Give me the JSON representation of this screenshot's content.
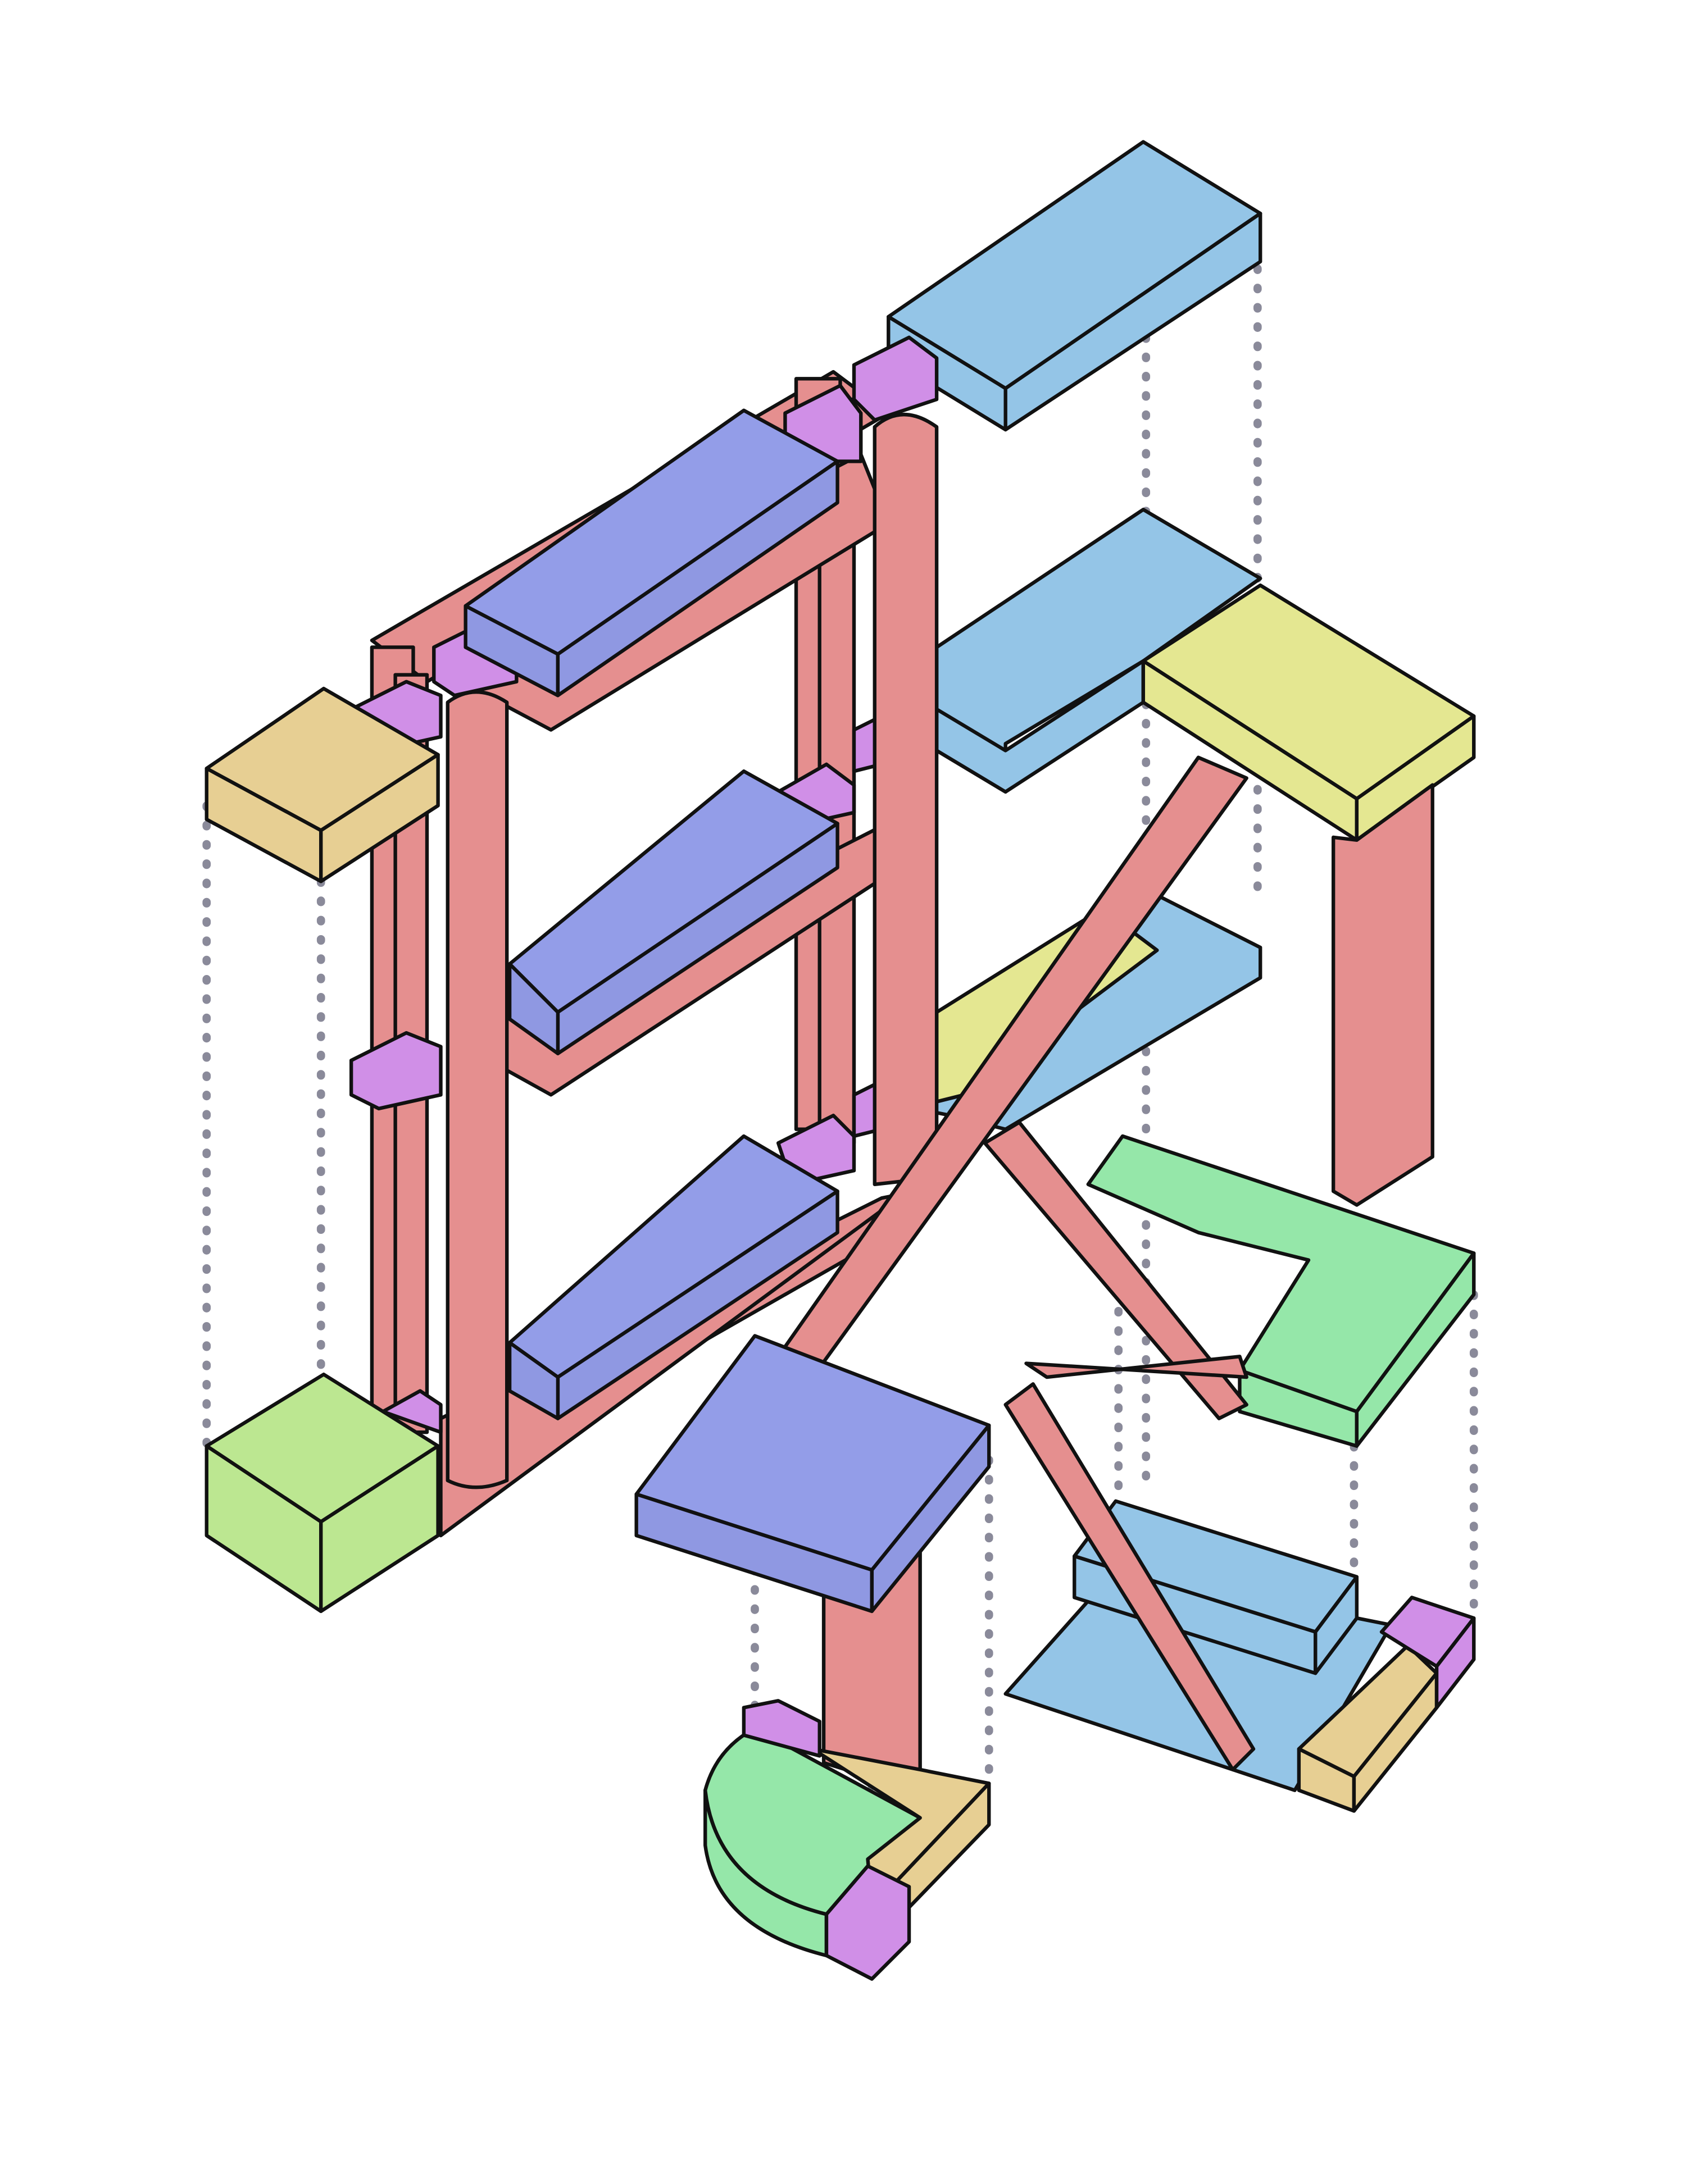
{
  "diagram": {
    "kind": "isometric exploded assembly",
    "text": "",
    "palette": {
      "red": "#e58f8f",
      "red_top": "#e89a9a",
      "indigo": "#939de8",
      "indigo_side": "#8f98e2",
      "sky": "#94c5e7",
      "yellow": "#e4e791",
      "tan": "#e7cf93",
      "green": "#95e7a9",
      "lime": "#bce791",
      "violet": "#d08fe7",
      "guide": "#8a8a9a"
    }
  }
}
